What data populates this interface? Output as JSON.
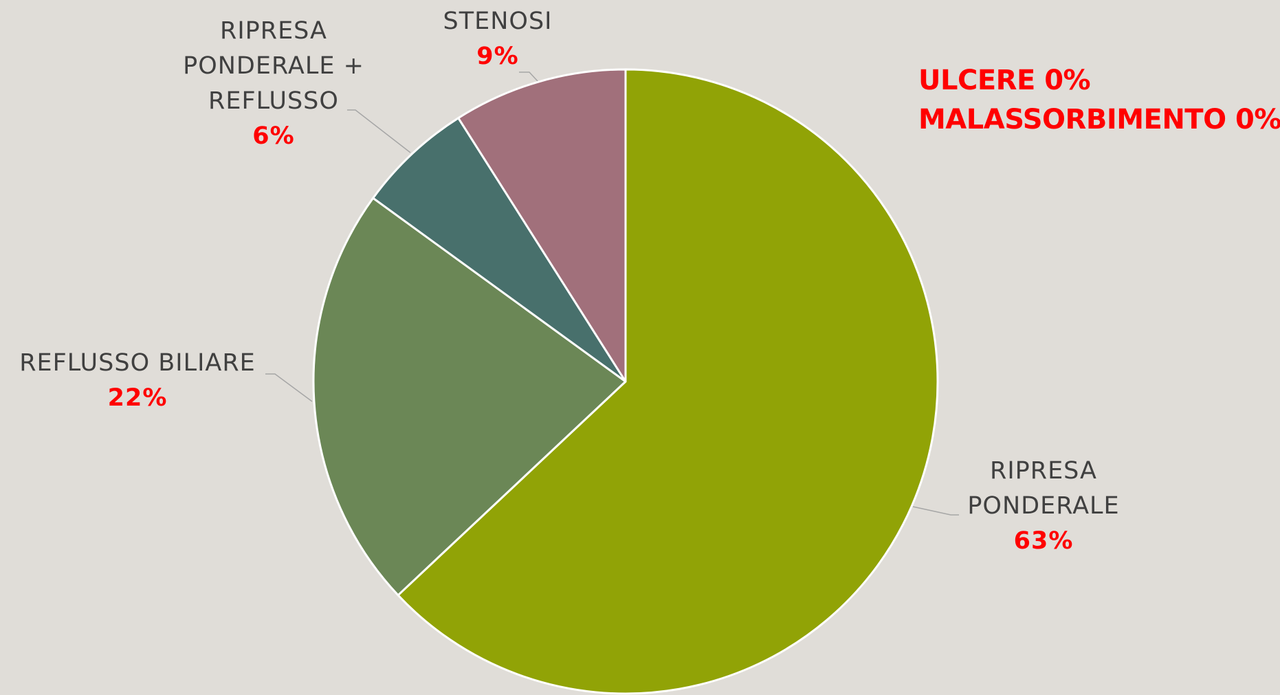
{
  "chart_data": {
    "type": "pie",
    "categories": [
      "RIPRESA PONDERALE",
      "REFLUSSO BILIARE",
      "RIPRESA PONDERALE + REFLUSSO",
      "STENOSI"
    ],
    "values": [
      63,
      22,
      6,
      9
    ],
    "value_labels": [
      "63%",
      "22%",
      "6%",
      "9%"
    ],
    "colors": [
      "#91a306",
      "#6b8756",
      "#48706c",
      "#a1707b"
    ],
    "annotations": [
      "ULCERE 0%",
      "MALASSORBIMENTO 0%"
    ]
  }
}
